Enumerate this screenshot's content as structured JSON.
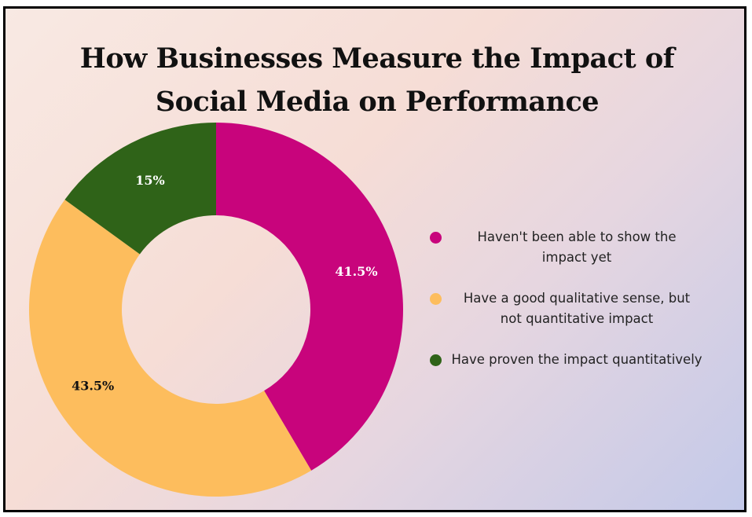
{
  "chart_data": {
    "type": "pie",
    "title": [
      "How Businesses Measure the Impact of",
      "Social Media on Performance"
    ],
    "categories": [
      "Haven't been able to show the impact yet",
      "Have a good qualitative sense, but not quantitative impact",
      "Have proven the impact quantitatively"
    ],
    "legend_lines": [
      [
        "Haven't been able to show the",
        "impact yet"
      ],
      [
        "Have a good qualitative sense, but",
        "not quantitative impact"
      ],
      [
        "Have proven the impact quantitatively"
      ]
    ],
    "values": [
      41.5,
      43.5,
      15
    ],
    "labels": [
      "41.5%",
      "43.5%",
      "15%"
    ],
    "label_colors": [
      "#ffffff",
      "#111111",
      "#ffffff"
    ],
    "colors": [
      "#c8047c",
      "#fdbd5d",
      "#2f6318"
    ],
    "donut": true,
    "legend_position": "right"
  }
}
